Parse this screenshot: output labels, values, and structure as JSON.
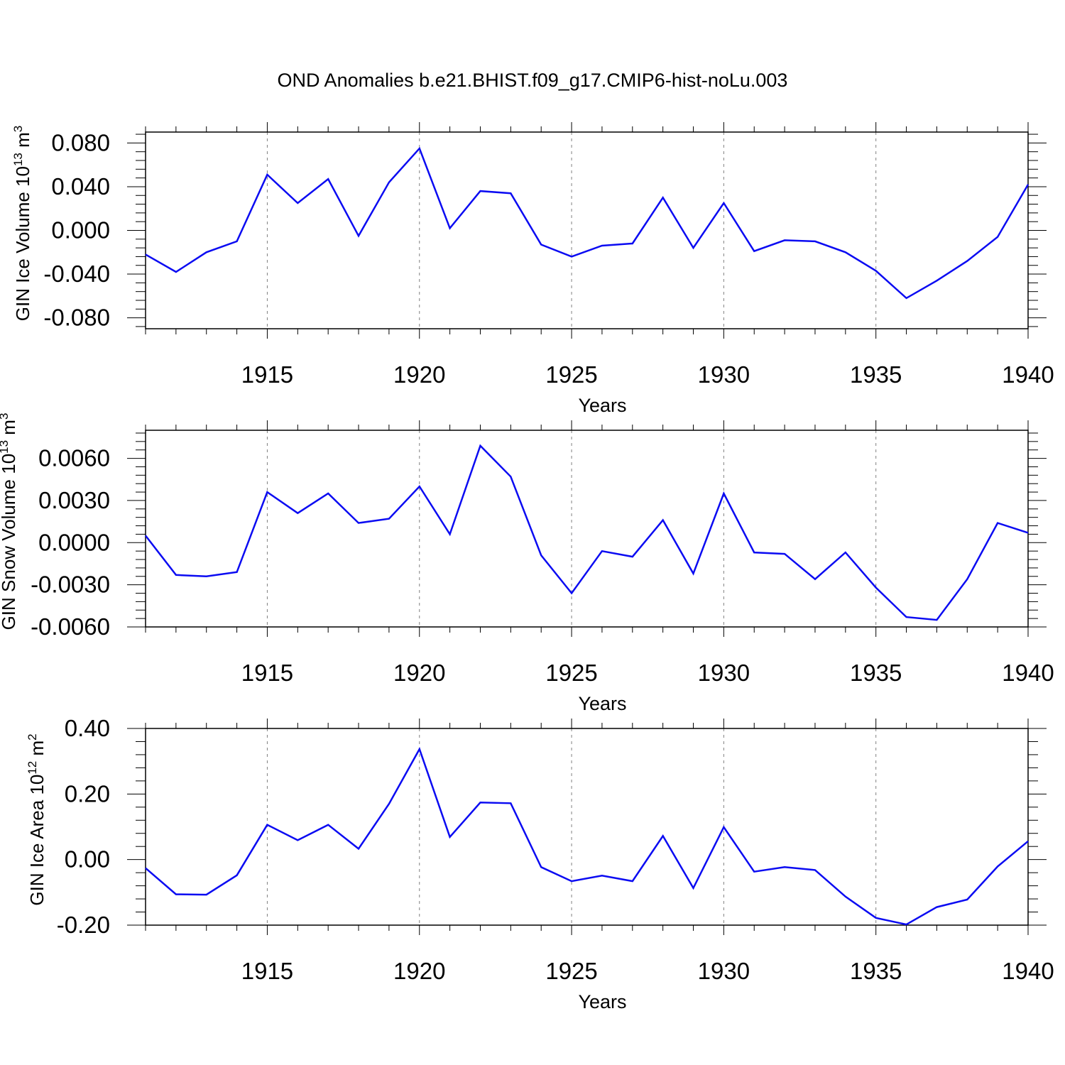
{
  "title": "OND Anomalies b.e21.BHIST.f09_g17.CMIP6-hist-noLu.003",
  "colors": {
    "line": "#0b0bf2",
    "axis": "#000000",
    "grid": "#808080"
  },
  "chart_data": [
    {
      "type": "line",
      "title": "OND Anomalies b.e21.BHIST.f09_g17.CMIP6-hist-noLu.003",
      "xlabel": "Years",
      "ylabel": {
        "text": "GIN Ice Volume 10",
        "sup": "13",
        "unit": " m",
        "unit_sup": "3"
      },
      "xlim": [
        1911,
        1940
      ],
      "ylim": [
        -0.09,
        0.09
      ],
      "xticks": [
        1915,
        1920,
        1925,
        1930,
        1935,
        1940
      ],
      "xtick_labels": [
        "1915",
        "1920",
        "1925",
        "1930",
        "1935",
        "1940"
      ],
      "yticks": [
        -0.08,
        -0.04,
        0.0,
        0.04,
        0.08
      ],
      "ytick_labels": [
        "-0.080",
        "-0.040",
        "0.000",
        "0.040",
        "0.080"
      ],
      "grid": "vertical dashed at major x ticks",
      "series": [
        {
          "name": "GIN Ice Volume",
          "x": [
            1911,
            1912,
            1913,
            1914,
            1915,
            1916,
            1917,
            1918,
            1919,
            1920,
            1921,
            1922,
            1923,
            1924,
            1925,
            1926,
            1927,
            1928,
            1929,
            1930,
            1931,
            1932,
            1933,
            1934,
            1935,
            1936,
            1937,
            1938,
            1939,
            1940
          ],
          "values": [
            -0.022,
            -0.038,
            -0.02,
            -0.01,
            0.051,
            0.025,
            0.047,
            -0.005,
            0.044,
            0.075,
            0.002,
            0.036,
            0.034,
            -0.013,
            -0.024,
            -0.014,
            -0.012,
            0.03,
            -0.016,
            0.025,
            -0.019,
            -0.009,
            -0.01,
            -0.02,
            -0.037,
            -0.062,
            -0.046,
            -0.028,
            -0.006,
            0.042
          ]
        }
      ]
    },
    {
      "type": "line",
      "xlabel": "Years",
      "ylabel": {
        "text": "GIN Snow Volume 10",
        "sup": "13",
        "unit": " m",
        "unit_sup": "3"
      },
      "xlim": [
        1911,
        1940
      ],
      "ylim": [
        -0.006,
        0.008
      ],
      "xticks": [
        1915,
        1920,
        1925,
        1930,
        1935,
        1940
      ],
      "xtick_labels": [
        "1915",
        "1920",
        "1925",
        "1930",
        "1935",
        "1940"
      ],
      "yticks": [
        -0.006,
        -0.003,
        0.0,
        0.003,
        0.006
      ],
      "ytick_labels": [
        "-0.0060",
        "-0.0030",
        "0.0000",
        "0.0030",
        "0.0060"
      ],
      "grid": "vertical dashed at major x ticks",
      "series": [
        {
          "name": "GIN Snow Volume",
          "x": [
            1911,
            1912,
            1913,
            1914,
            1915,
            1916,
            1917,
            1918,
            1919,
            1920,
            1921,
            1922,
            1923,
            1924,
            1925,
            1926,
            1927,
            1928,
            1929,
            1930,
            1931,
            1932,
            1933,
            1934,
            1935,
            1936,
            1937,
            1938,
            1939,
            1940
          ],
          "values": [
            0.0005,
            -0.0023,
            -0.0024,
            -0.0021,
            0.0036,
            0.0021,
            0.0035,
            0.0014,
            0.0017,
            0.004,
            0.0006,
            0.0069,
            0.0047,
            -0.0009,
            -0.0036,
            -0.0006,
            -0.001,
            0.0016,
            -0.0022,
            0.0035,
            -0.0007,
            -0.0008,
            -0.0026,
            -0.0007,
            -0.0032,
            -0.0053,
            -0.0055,
            -0.0026,
            0.0014,
            0.0007
          ]
        }
      ]
    },
    {
      "type": "line",
      "xlabel": "Years",
      "ylabel": {
        "text": "GIN Ice Area 10",
        "sup": "12",
        "unit": " m",
        "unit_sup": "2"
      },
      "xlim": [
        1911,
        1940
      ],
      "ylim": [
        -0.2,
        0.4
      ],
      "xticks": [
        1915,
        1920,
        1925,
        1930,
        1935,
        1940
      ],
      "xtick_labels": [
        "1915",
        "1920",
        "1925",
        "1930",
        "1935",
        "1940"
      ],
      "yticks": [
        -0.2,
        0.0,
        0.2,
        0.4
      ],
      "ytick_labels": [
        "-0.20",
        "0.00",
        "0.20",
        "0.40"
      ],
      "grid": "vertical dashed at major x ticks",
      "series": [
        {
          "name": "GIN Ice Area",
          "x": [
            1911,
            1912,
            1913,
            1914,
            1915,
            1916,
            1917,
            1918,
            1919,
            1920,
            1921,
            1922,
            1923,
            1924,
            1925,
            1926,
            1927,
            1928,
            1929,
            1930,
            1931,
            1932,
            1933,
            1934,
            1935,
            1936,
            1937,
            1938,
            1939,
            1940
          ],
          "values": [
            -0.026,
            -0.106,
            -0.107,
            -0.048,
            0.106,
            0.059,
            0.106,
            0.033,
            0.17,
            0.337,
            0.069,
            0.174,
            0.172,
            -0.023,
            -0.066,
            -0.049,
            -0.066,
            0.072,
            -0.087,
            0.099,
            -0.037,
            -0.023,
            -0.032,
            -0.113,
            -0.178,
            -0.198,
            -0.145,
            -0.122,
            -0.021,
            0.056
          ]
        }
      ]
    }
  ]
}
